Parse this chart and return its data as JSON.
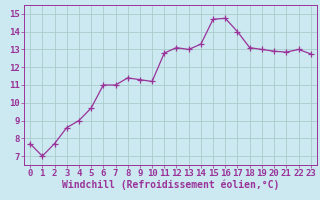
{
  "x": [
    0,
    1,
    2,
    3,
    4,
    5,
    6,
    7,
    8,
    9,
    10,
    11,
    12,
    13,
    14,
    15,
    16,
    17,
    18,
    19,
    20,
    21,
    22,
    23
  ],
  "y": [
    7.7,
    7.0,
    7.7,
    8.6,
    9.0,
    9.7,
    11.0,
    11.0,
    11.4,
    11.3,
    11.2,
    12.8,
    13.1,
    13.0,
    13.3,
    14.7,
    14.75,
    14.0,
    13.1,
    13.0,
    12.9,
    12.85,
    13.0,
    12.75
  ],
  "xlabel": "Windchill (Refroidissement éolien,°C)",
  "xlim": [
    -0.5,
    23.5
  ],
  "ylim": [
    6.5,
    15.5
  ],
  "yticks": [
    7,
    8,
    9,
    10,
    11,
    12,
    13,
    14,
    15
  ],
  "xticks": [
    0,
    1,
    2,
    3,
    4,
    5,
    6,
    7,
    8,
    9,
    10,
    11,
    12,
    13,
    14,
    15,
    16,
    17,
    18,
    19,
    20,
    21,
    22,
    23
  ],
  "line_color": "#993399",
  "marker_color": "#993399",
  "bg_color": "#cce8f0",
  "grid_color": "#aacccc",
  "label_color": "#993399",
  "tick_fontsize": 6.5,
  "xlabel_fontsize": 7.0,
  "marker_size": 2.5,
  "linewidth": 0.9
}
